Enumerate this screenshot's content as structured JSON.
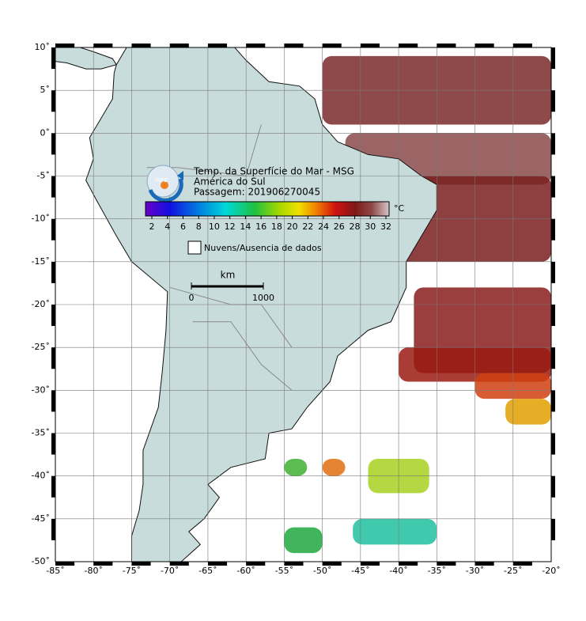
{
  "map": {
    "title": "Temp. da Superfície do Mar - MSG",
    "region": "América do Sul",
    "pass": "Passagem: 201906270045",
    "logo": "INPE",
    "colorbar": {
      "ticks": [
        2,
        4,
        6,
        8,
        10,
        12,
        14,
        16,
        18,
        20,
        22,
        24,
        26,
        28,
        30,
        32
      ],
      "unit": "°C"
    },
    "legend": "Nuvens/Ausencia de dados",
    "scale": {
      "unit": "km",
      "labels": [
        "0",
        "1000"
      ]
    },
    "lon_labels": [
      "-85˚",
      "-80˚",
      "-75˚",
      "-70˚",
      "-65˚",
      "-60˚",
      "-55˚",
      "-50˚",
      "-45˚",
      "-40˚",
      "-35˚",
      "-30˚",
      "-25˚",
      "-20˚"
    ],
    "lat_labels": [
      "10˚",
      "5˚",
      "0˚",
      "-5˚",
      "-10˚",
      "-15˚",
      "-20˚",
      "-25˚",
      "-30˚",
      "-35˚",
      "-40˚",
      "-45˚",
      "-50˚"
    ]
  }
}
